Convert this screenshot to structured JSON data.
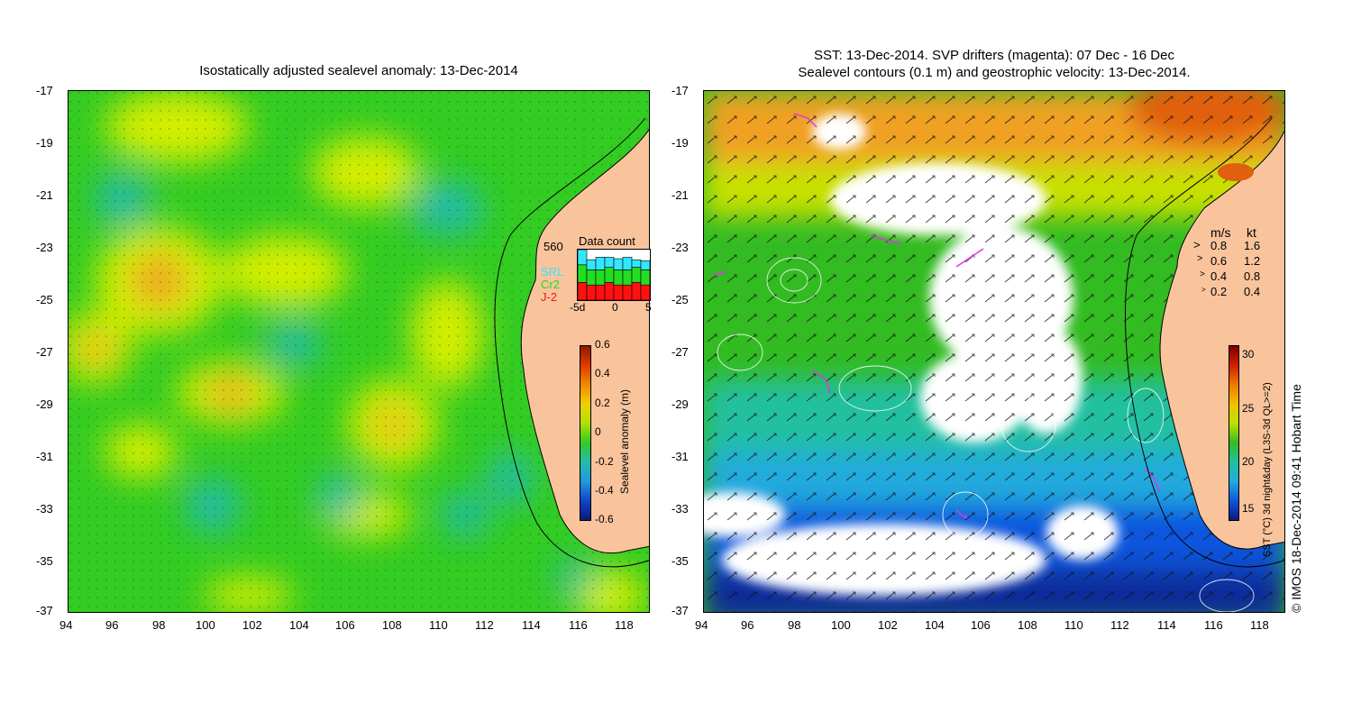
{
  "left_panel": {
    "title": "Isostatically adjusted sealevel anomaly: 13-Dec-2014",
    "x_ticks": [
      "94",
      "96",
      "98",
      "100",
      "102",
      "104",
      "106",
      "108",
      "110",
      "112",
      "114",
      "116",
      "118"
    ],
    "y_ticks": [
      "-17",
      "-19",
      "-21",
      "-23",
      "-25",
      "-27",
      "-29",
      "-31",
      "-33",
      "-35",
      "-37"
    ],
    "data_count": {
      "title": "Data count",
      "max_label": "560",
      "satellites": [
        {
          "name": "SRL",
          "color": "#33e6ff"
        },
        {
          "name": "Cr2",
          "color": "#22dd22"
        },
        {
          "name": "J-2",
          "color": "#ff1111"
        }
      ],
      "x_labels": [
        "-5d",
        "0",
        "5"
      ],
      "bars": [
        {
          "srl": 0.3,
          "cr2": 0.35,
          "j2": 0.35
        },
        {
          "srl": 0.2,
          "cr2": 0.3,
          "j2": 0.3
        },
        {
          "srl": 0.25,
          "cr2": 0.3,
          "j2": 0.3
        },
        {
          "srl": 0.2,
          "cr2": 0.3,
          "j2": 0.35
        },
        {
          "srl": 0.22,
          "cr2": 0.3,
          "j2": 0.3
        },
        {
          "srl": 0.25,
          "cr2": 0.3,
          "j2": 0.3
        },
        {
          "srl": 0.15,
          "cr2": 0.3,
          "j2": 0.35
        },
        {
          "srl": 0.18,
          "cr2": 0.3,
          "j2": 0.3
        }
      ]
    },
    "colorbar": {
      "title": "Sealevel anomaly (m)",
      "labels": [
        "0.6",
        "0.4",
        "0.2",
        "0",
        "-0.2",
        "-0.4",
        "-0.6"
      ]
    }
  },
  "right_panel": {
    "title_line1": "SST: 13-Dec-2014. SVP drifters (magenta): 07 Dec - 16 Dec",
    "title_line2": "Sealevel contours (0.1 m) and geostrophic velocity: 13-Dec-2014.",
    "x_ticks": [
      "94",
      "96",
      "98",
      "100",
      "102",
      "104",
      "106",
      "108",
      "110",
      "112",
      "114",
      "116",
      "118"
    ],
    "y_ticks": [
      "-17",
      "-19",
      "-21",
      "-23",
      "-25",
      "-27",
      "-29",
      "-31",
      "-33",
      "-35",
      "-37"
    ],
    "velocity_legend": {
      "header_ms": "m/s",
      "header_kt": "kt",
      "rows": [
        {
          "ms": "0.8",
          "kt": "1.6"
        },
        {
          "ms": "0.6",
          "kt": "1.2"
        },
        {
          "ms": "0.4",
          "kt": "0.8"
        },
        {
          "ms": "0.2",
          "kt": "0.4"
        }
      ]
    },
    "colorbar": {
      "title": "SST (°C) 3d night&day (L3S-3d QL>=2)",
      "labels": [
        "30",
        "25",
        "20",
        "15"
      ]
    }
  },
  "credit": "© IMOS 18-Dec-2014 09:41 Hobart Time",
  "colors": {
    "land": "#f9c49c",
    "anomaly_green": "#33cc22",
    "anomaly_yellow": "#d4ee00",
    "anomaly_orange": "#f0a020",
    "anomaly_cyan": "#22bbaa",
    "sst_orange": "#f0a020",
    "sst_green": "#33bb22",
    "sst_blue": "#1155dd",
    "drifter": "#dd33ee"
  }
}
